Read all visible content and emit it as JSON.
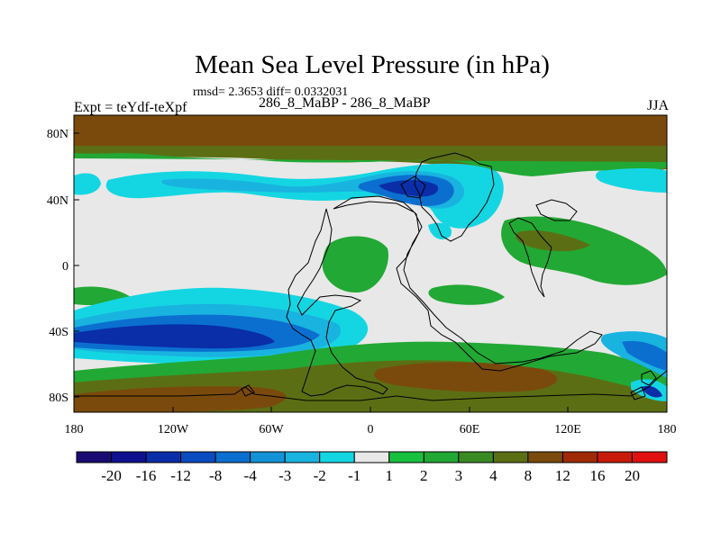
{
  "title": "Mean Sea Level Pressure (in hPa)",
  "stats": "rmsd= 2.3653 diff= 0.0332031",
  "experiment": "Expt = teYdf-teXpf",
  "subtitle": "286_8_MaBP - 286_8_MaBP",
  "season": "JJA",
  "lon_ticks": [
    "180",
    "120W",
    "60W",
    "0",
    "60E",
    "120E",
    "180"
  ],
  "lat_ticks": [
    "80N",
    "40N",
    "0",
    "40S",
    "80S"
  ],
  "colorbar": {
    "labels": [
      "-20",
      "-16",
      "-12",
      "-8",
      "-4",
      "-3",
      "-2",
      "-1",
      "1",
      "2",
      "3",
      "4",
      "8",
      "12",
      "16",
      "20"
    ],
    "colors": [
      "#1a0b73",
      "#10118e",
      "#0a2da8",
      "#0b4bc0",
      "#0b6fd0",
      "#1492d8",
      "#19b3e0",
      "#14d6e2",
      "#e8e8e8",
      "#18c040",
      "#22a834",
      "#3a8a24",
      "#5c6e14",
      "#7a4a0c",
      "#a02a08",
      "#c81a0a",
      "#e01010"
    ]
  },
  "colors": {
    "background": "#e8e8e8",
    "high_brown": "#7a4a0c",
    "olive": "#5c6e14",
    "green": "#22a834",
    "cyan": "#14d6e2",
    "blue": "#0b6fd0",
    "deep_blue": "#0a2da8"
  }
}
